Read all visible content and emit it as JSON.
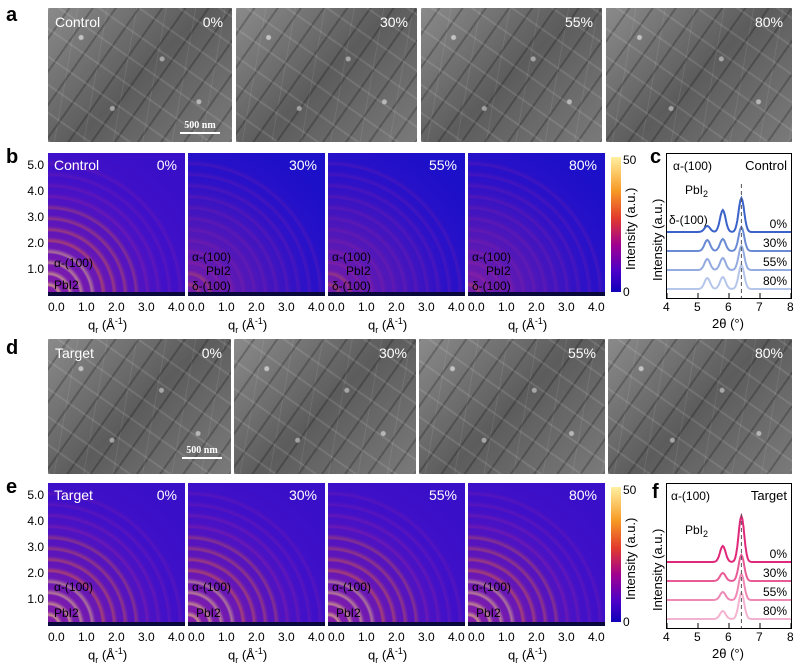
{
  "panels": {
    "a": "a",
    "b": "b",
    "c": "c",
    "d": "d",
    "e": "e",
    "f": "f"
  },
  "sem_rows": {
    "control": {
      "condition": "Control",
      "percents": [
        "0%",
        "30%",
        "55%",
        "80%"
      ],
      "scale_bar": "500 nm"
    },
    "target": {
      "condition": "Target",
      "percents": [
        "0%",
        "30%",
        "55%",
        "80%"
      ],
      "scale_bar": "500 nm"
    }
  },
  "giwaxs_rows": {
    "control": {
      "condition": "Control",
      "percents": [
        "0%",
        "30%",
        "55%",
        "80%"
      ],
      "annotations_first": [
        "α-(100)",
        "PbI2"
      ],
      "annotations_other": [
        "α-(100)",
        "PbI2",
        "δ-(100)"
      ]
    },
    "target": {
      "condition": "Target",
      "percents": [
        "0%",
        "30%",
        "55%",
        "80%"
      ],
      "annotations": [
        "α-(100)",
        "PbI2"
      ]
    },
    "y_ticks": [
      "5.0",
      "4.0",
      "3.0",
      "2.0",
      "1.0"
    ],
    "x_ticks": [
      "0.0",
      "1.0",
      "2.0",
      "3.0",
      "4.0"
    ],
    "x_label": "qr (Å-1)",
    "x_label_parts": {
      "q": "q",
      "sub": "r",
      "rest": " (Å",
      "sup": "-1",
      "end": ")"
    },
    "colorbar": {
      "label": "Intensity (a.u.)",
      "max_tick": "50",
      "min_tick": "0",
      "colors": [
        "#1000b8",
        "#a00090",
        "#e23c2c",
        "#f79a25",
        "#fff0a0"
      ]
    }
  },
  "chart_data": [
    {
      "type": "line",
      "panel": "c",
      "legend_title": "Control",
      "series": [
        {
          "name": "0%",
          "color": "#3a62c8"
        },
        {
          "name": "30%",
          "color": "#6a8ad4"
        },
        {
          "name": "55%",
          "color": "#93abdf"
        },
        {
          "name": "80%",
          "color": "#b6c6ea"
        }
      ],
      "peaks": [
        {
          "label": "δ-(100)",
          "x": 5.3
        },
        {
          "label": "PbI2",
          "x": 5.8
        },
        {
          "label": "α-(100)",
          "x": 6.4
        }
      ],
      "x_ticks": [
        "4",
        "5",
        "6",
        "7",
        "8"
      ],
      "xlim": [
        4,
        8
      ],
      "xlabel": "2θ (°)",
      "ylabel": "Intensity (a.u.)"
    },
    {
      "type": "line",
      "panel": "f",
      "legend_title": "Target",
      "series": [
        {
          "name": "0%",
          "color": "#e0287a"
        },
        {
          "name": "30%",
          "color": "#e85a96"
        },
        {
          "name": "55%",
          "color": "#ee88b4"
        },
        {
          "name": "80%",
          "color": "#f3b2d0"
        }
      ],
      "peaks": [
        {
          "label": "PbI2",
          "x": 5.8
        },
        {
          "label": "α-(100)",
          "x": 6.4
        }
      ],
      "x_ticks": [
        "4",
        "5",
        "6",
        "7",
        "8"
      ],
      "xlim": [
        4,
        8
      ],
      "xlabel": "2θ (°)",
      "ylabel": "Intensity (a.u.)"
    }
  ]
}
